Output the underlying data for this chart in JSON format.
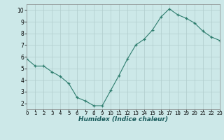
{
  "x": [
    0,
    1,
    2,
    3,
    4,
    5,
    6,
    7,
    8,
    9,
    10,
    11,
    12,
    13,
    14,
    15,
    16,
    17,
    18,
    19,
    20,
    21,
    22,
    23
  ],
  "y": [
    5.8,
    5.2,
    5.2,
    4.7,
    4.3,
    3.7,
    2.5,
    2.2,
    1.8,
    1.8,
    3.1,
    4.4,
    5.8,
    7.0,
    7.5,
    8.3,
    9.4,
    10.1,
    9.6,
    9.3,
    8.9,
    8.2,
    7.7,
    7.4
  ],
  "xlim": [
    0,
    23
  ],
  "ylim": [
    1.5,
    10.5
  ],
  "yticks": [
    2,
    3,
    4,
    5,
    6,
    7,
    8,
    9,
    10
  ],
  "xticks": [
    0,
    1,
    2,
    3,
    4,
    5,
    6,
    7,
    8,
    9,
    10,
    11,
    12,
    13,
    14,
    15,
    16,
    17,
    18,
    19,
    20,
    21,
    22,
    23
  ],
  "xlabel": "Humidex (Indice chaleur)",
  "line_color": "#2e7d6e",
  "marker": "+",
  "bg_color": "#cce8e8",
  "grid_color": "#b0cccc",
  "title": ""
}
